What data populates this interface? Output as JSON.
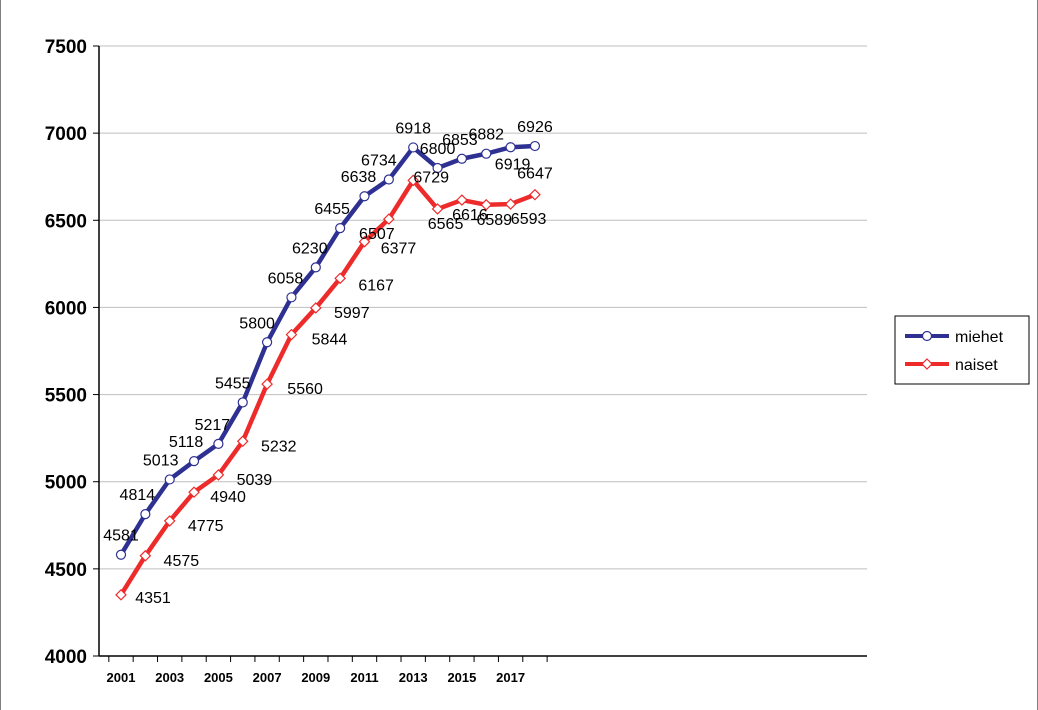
{
  "chart_data": {
    "type": "line",
    "x": [
      2001,
      2002,
      2003,
      2004,
      2005,
      2006,
      2007,
      2008,
      2009,
      2010,
      2011,
      2012,
      2013,
      2014,
      2015,
      2016,
      2017,
      2018
    ],
    "x_tick_labels": [
      "2001",
      "2003",
      "2005",
      "2007",
      "2009",
      "2011",
      "2013",
      "2015",
      "2017"
    ],
    "ylim": [
      4000,
      7500
    ],
    "y_ticks": [
      "4000",
      "4500",
      "5000",
      "5500",
      "6000",
      "6500",
      "7000",
      "7500"
    ],
    "grid": "horizontal",
    "legend_position": "right",
    "series": [
      {
        "name": "miehet",
        "color": "#2e3192",
        "marker": "circle",
        "values": [
          4581,
          4814,
          5013,
          5118,
          5217,
          5455,
          5800,
          6058,
          6230,
          6455,
          6638,
          6734,
          6918,
          6800,
          6853,
          6882,
          6919,
          6926
        ]
      },
      {
        "name": "naiset",
        "color": "#ee2b2b",
        "marker": "diamond",
        "values": [
          4351,
          4575,
          4775,
          4940,
          5039,
          5232,
          5560,
          5844,
          5997,
          6167,
          6377,
          6507,
          6729,
          6565,
          6616,
          6589,
          6593,
          6647
        ]
      }
    ]
  }
}
